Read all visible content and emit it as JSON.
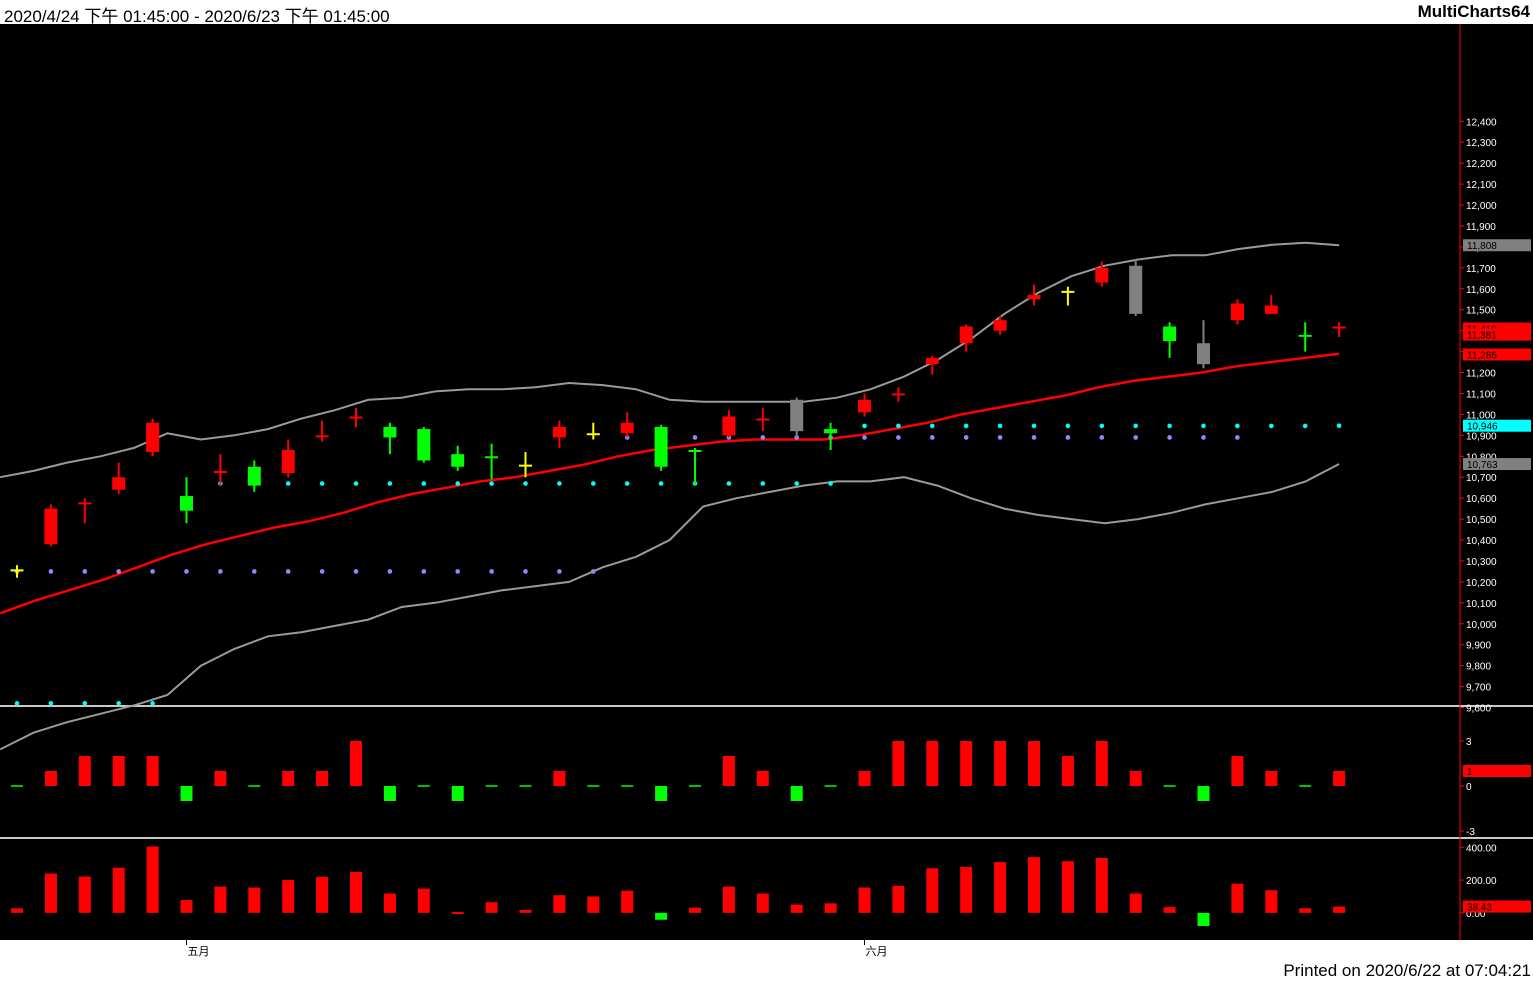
{
  "header": {
    "range": "2020/4/24 下午 01:45:00 - 2020/6/23 下午 01:45:00",
    "brand": "MultiCharts64"
  },
  "footer": {
    "printed": "Printed on 2020/6/22 at 07:04:21"
  },
  "colors": {
    "background": "#000000",
    "up": "#ff0000",
    "down": "#00ff00",
    "neutral": "#ffff00",
    "gray_candle": "#808080",
    "band": "#9a9a9a",
    "ma": "#ff0000",
    "cyan": "#00ffff",
    "violet": "#8c8cff",
    "axis_text": "#ffffff",
    "divider": "#c8c8c8"
  },
  "chart_data": [
    {
      "type": "candlestick",
      "panel": "price",
      "ylim": [
        9550,
        12750
      ],
      "yticks": [
        9600,
        9700,
        9800,
        9900,
        10000,
        10100,
        10200,
        10300,
        10400,
        10500,
        10600,
        10700,
        10800,
        10900,
        11000,
        11100,
        11200,
        11300,
        11400,
        11500,
        11600,
        11700,
        11800,
        11900,
        12000,
        12100,
        12200,
        12300,
        12400
      ],
      "ytick_labels": [
        "9,600",
        "9,700",
        "9,800",
        "9,900",
        "10,000",
        "10,100",
        "10,200",
        "10,300",
        "10,400",
        "10,500",
        "10,600",
        "10,700",
        "10,800",
        "10,900",
        "11,000",
        "11,100",
        "11,200",
        "11,300",
        "11,400",
        "11,500",
        "11,600",
        "11,700",
        "11,800",
        "11,900",
        "12,000",
        "12,100",
        "12,200",
        "12,300",
        "12,400"
      ],
      "x_labels": [
        {
          "index": 5,
          "label": "五月"
        },
        {
          "index": 25,
          "label": "六月"
        }
      ],
      "candles": [
        {
          "o": 10260,
          "h": 10280,
          "l": 10220,
          "c": 10250,
          "color": "yellow"
        },
        {
          "o": 10380,
          "h": 10570,
          "l": 10370,
          "c": 10550,
          "color": "red"
        },
        {
          "o": 10580,
          "h": 10600,
          "l": 10480,
          "c": 10580,
          "color": "red"
        },
        {
          "o": 10640,
          "h": 10770,
          "l": 10620,
          "c": 10700,
          "color": "red"
        },
        {
          "o": 10820,
          "h": 10980,
          "l": 10800,
          "c": 10960,
          "color": "red"
        },
        {
          "o": 10610,
          "h": 10700,
          "l": 10480,
          "c": 10540,
          "color": "green"
        },
        {
          "o": 10720,
          "h": 10810,
          "l": 10660,
          "c": 10730,
          "color": "red"
        },
        {
          "o": 10750,
          "h": 10780,
          "l": 10630,
          "c": 10660,
          "color": "green"
        },
        {
          "o": 10720,
          "h": 10880,
          "l": 10700,
          "c": 10830,
          "color": "red"
        },
        {
          "o": 10900,
          "h": 10970,
          "l": 10870,
          "c": 10900,
          "color": "red"
        },
        {
          "o": 10990,
          "h": 11030,
          "l": 10940,
          "c": 10990,
          "color": "red"
        },
        {
          "o": 10940,
          "h": 10960,
          "l": 10810,
          "c": 10890,
          "color": "green"
        },
        {
          "o": 10930,
          "h": 10940,
          "l": 10770,
          "c": 10780,
          "color": "green"
        },
        {
          "o": 10810,
          "h": 10850,
          "l": 10730,
          "c": 10750,
          "color": "green"
        },
        {
          "o": 10800,
          "h": 10860,
          "l": 10690,
          "c": 10800,
          "color": "green"
        },
        {
          "o": 10760,
          "h": 10820,
          "l": 10700,
          "c": 10760,
          "color": "yellow"
        },
        {
          "o": 10890,
          "h": 10970,
          "l": 10840,
          "c": 10940,
          "color": "red"
        },
        {
          "o": 10910,
          "h": 10960,
          "l": 10880,
          "c": 10910,
          "color": "yellow"
        },
        {
          "o": 10910,
          "h": 11010,
          "l": 10890,
          "c": 10960,
          "color": "red"
        },
        {
          "o": 10940,
          "h": 10950,
          "l": 10730,
          "c": 10750,
          "color": "green"
        },
        {
          "o": 10830,
          "h": 10840,
          "l": 10660,
          "c": 10830,
          "color": "green"
        },
        {
          "o": 10900,
          "h": 11020,
          "l": 10890,
          "c": 10990,
          "color": "red"
        },
        {
          "o": 10980,
          "h": 11030,
          "l": 10920,
          "c": 10980,
          "color": "red"
        },
        {
          "o": 11070,
          "h": 11080,
          "l": 10890,
          "c": 10920,
          "color": "gray"
        },
        {
          "o": 10930,
          "h": 10960,
          "l": 10830,
          "c": 10910,
          "color": "green"
        },
        {
          "o": 11010,
          "h": 11100,
          "l": 10990,
          "c": 11070,
          "color": "red"
        },
        {
          "o": 11100,
          "h": 11130,
          "l": 11060,
          "c": 11100,
          "color": "red"
        },
        {
          "o": 11240,
          "h": 11280,
          "l": 11190,
          "c": 11270,
          "color": "red"
        },
        {
          "o": 11340,
          "h": 11430,
          "l": 11300,
          "c": 11420,
          "color": "red"
        },
        {
          "o": 11400,
          "h": 11470,
          "l": 11380,
          "c": 11450,
          "color": "red"
        },
        {
          "o": 11550,
          "h": 11620,
          "l": 11520,
          "c": 11570,
          "color": "red"
        },
        {
          "o": 11590,
          "h": 11610,
          "l": 11520,
          "c": 11590,
          "color": "yellow"
        },
        {
          "o": 11630,
          "h": 11730,
          "l": 11610,
          "c": 11700,
          "color": "red"
        },
        {
          "o": 11710,
          "h": 11740,
          "l": 11470,
          "c": 11480,
          "color": "gray"
        },
        {
          "o": 11420,
          "h": 11440,
          "l": 11270,
          "c": 11350,
          "color": "green"
        },
        {
          "o": 11340,
          "h": 11450,
          "l": 11220,
          "c": 11240,
          "color": "gray"
        },
        {
          "o": 11450,
          "h": 11550,
          "l": 11430,
          "c": 11530,
          "color": "red"
        },
        {
          "o": 11480,
          "h": 11570,
          "l": 11480,
          "c": 11520,
          "color": "red"
        },
        {
          "o": 11380,
          "h": 11440,
          "l": 11300,
          "c": 11380,
          "color": "green"
        },
        {
          "o": 11420,
          "h": 11440,
          "l": 11370,
          "c": 11410,
          "color": "red"
        }
      ],
      "ma": {
        "name": "MA",
        "x_start": -0.5,
        "x_end": 39,
        "values": [
          10050,
          10110,
          10160,
          10210,
          10270,
          10330,
          10380,
          10420,
          10460,
          10490,
          10530,
          10580,
          10620,
          10650,
          10680,
          10700,
          10730,
          10760,
          10800,
          10830,
          10850,
          10870,
          10880,
          10880,
          10880,
          10900,
          10930,
          10960,
          11000,
          11030,
          11060,
          11090,
          11130,
          11160,
          11180,
          11200,
          11230,
          11250,
          11270,
          11290
        ]
      },
      "upper_band": {
        "name": "Upper",
        "x_start": -0.5,
        "x_end": 39,
        "values": [
          10700,
          10730,
          10770,
          10800,
          10840,
          10910,
          10880,
          10900,
          10930,
          10980,
          11020,
          11070,
          11080,
          11110,
          11120,
          11120,
          11130,
          11150,
          11140,
          11120,
          11070,
          11060,
          11060,
          11060,
          11060,
          11080,
          11120,
          11180,
          11260,
          11360,
          11480,
          11580,
          11660,
          11710,
          11740,
          11760,
          11760,
          11790,
          11810,
          11820,
          11808
        ]
      },
      "lower_band": {
        "name": "Lower",
        "x_start": -0.5,
        "x_end": 39,
        "values": [
          9400,
          9480,
          9530,
          9570,
          9610,
          9660,
          9800,
          9880,
          9940,
          9960,
          9990,
          10020,
          10080,
          10100,
          10130,
          10160,
          10180,
          10200,
          10270,
          10320,
          10400,
          10560,
          10600,
          10630,
          10660,
          10680,
          10680,
          10700,
          10660,
          10600,
          10550,
          10520,
          10500,
          10480,
          10500,
          10530,
          10570,
          10600,
          10630,
          10680,
          10763
        ]
      },
      "cyan_dots": {
        "name": "Upper stop",
        "values": [
          9620,
          9620,
          9620,
          9620,
          9620,
          null,
          10670,
          10670,
          10670,
          10670,
          10670,
          10670,
          10670,
          10670,
          10670,
          10670,
          10670,
          10670,
          10670,
          10670,
          10670,
          10670,
          10670,
          10670,
          10670,
          10945,
          10945,
          10945,
          10945,
          10945,
          10945,
          10945,
          10945,
          10945,
          10945,
          10945,
          10945,
          10945,
          10945,
          10946
        ]
      },
      "violet_dots": {
        "name": "Lower stop",
        "values": [
          10250,
          10250,
          10250,
          10250,
          10250,
          10250,
          10250,
          10250,
          10250,
          10250,
          10250,
          10250,
          10250,
          10250,
          10250,
          10250,
          10250,
          10250,
          10890,
          10890,
          10890,
          10890,
          10890,
          10890,
          10890,
          10890,
          10890,
          10890,
          10890,
          10890,
          10890,
          10890,
          10890,
          10890,
          10890,
          10890,
          10890,
          null,
          null,
          null
        ]
      },
      "price_tags": [
        {
          "value": 11808,
          "label": "11,808",
          "color": "#808080"
        },
        {
          "value": 11410,
          "label": "11,410",
          "color": "#ff0000"
        },
        {
          "value": 11381,
          "label": "11,381",
          "color": "#ff0000"
        },
        {
          "value": 11286,
          "label": "11,286",
          "color": "#ff0000"
        },
        {
          "value": 10946,
          "label": "10,946",
          "color": "#00ffff"
        },
        {
          "value": 10763,
          "label": "10,763",
          "color": "#808080"
        }
      ]
    },
    {
      "type": "bar",
      "panel": "indicator1",
      "ylim": [
        -4,
        4
      ],
      "yticks": [
        3,
        0,
        -3
      ],
      "ytick_labels": [
        "3",
        "0",
        "-3"
      ],
      "values": [
        0,
        1,
        2,
        2,
        2,
        -1,
        1,
        0,
        1,
        1,
        3,
        -1,
        0,
        -1,
        0,
        0,
        1,
        0,
        0,
        -1,
        0,
        2,
        1,
        -1,
        0,
        1,
        3,
        3,
        3,
        3,
        3,
        2,
        3,
        1,
        0,
        -1,
        2,
        1,
        0,
        1
      ],
      "last_tag": {
        "value": 1,
        "label": "1"
      }
    },
    {
      "type": "bar",
      "panel": "indicator2",
      "ylim": [
        -80,
        420
      ],
      "yticks": [
        400,
        200,
        0
      ],
      "ytick_labels": [
        "400.00",
        "200.00",
        "0.00"
      ],
      "values": [
        28,
        240,
        222,
        275,
        405,
        78,
        160,
        155,
        200,
        220,
        250,
        118,
        148,
        5,
        65,
        18,
        108,
        100,
        135,
        -42,
        32,
        160,
        118,
        50,
        58,
        155,
        165,
        272,
        280,
        310,
        340,
        315,
        335,
        118,
        35,
        -80,
        178,
        138,
        28,
        38.43
      ],
      "last_tag": {
        "value": 38.43,
        "label": "38.43"
      }
    }
  ]
}
